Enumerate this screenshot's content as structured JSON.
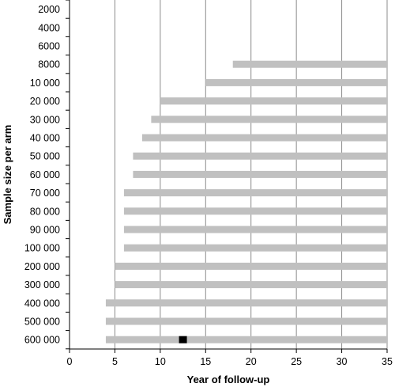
{
  "chart_data": {
    "type": "bar",
    "orientation": "horizontal",
    "title": "",
    "xlabel": "Year of follow-up",
    "ylabel": "Sample size per arm",
    "xlim": [
      0,
      35
    ],
    "x_ticks": [
      "0",
      "5",
      "10",
      "15",
      "20",
      "25",
      "30",
      "35"
    ],
    "categories": [
      "2000",
      "4000",
      "6000",
      "8000",
      "10 000",
      "20 000",
      "30 000",
      "40 000",
      "50 000",
      "60 000",
      "70 000",
      "80 000",
      "90 000",
      "100 000",
      "200 000",
      "300 000",
      "400 000",
      "500 000",
      "600 000"
    ],
    "series": [
      {
        "start": [
          null,
          null,
          null,
          18,
          15,
          10,
          9,
          8,
          7,
          7,
          6,
          6,
          6,
          6,
          5,
          5,
          4,
          4,
          4
        ],
        "end": [
          null,
          null,
          null,
          35,
          35,
          35,
          35,
          35,
          35,
          35,
          35,
          35,
          35,
          35,
          35,
          35,
          35,
          35,
          35
        ],
        "color": "#c0c0c0"
      }
    ],
    "markers": [
      {
        "category": "600 000",
        "x": 12.5,
        "color": "#000000"
      }
    ],
    "grid": "vertical",
    "legend": "none",
    "colors": {
      "bar": "#c0c0c0",
      "grid": "#8c8c8c",
      "axis": "#000000",
      "marker": "#000000"
    }
  }
}
